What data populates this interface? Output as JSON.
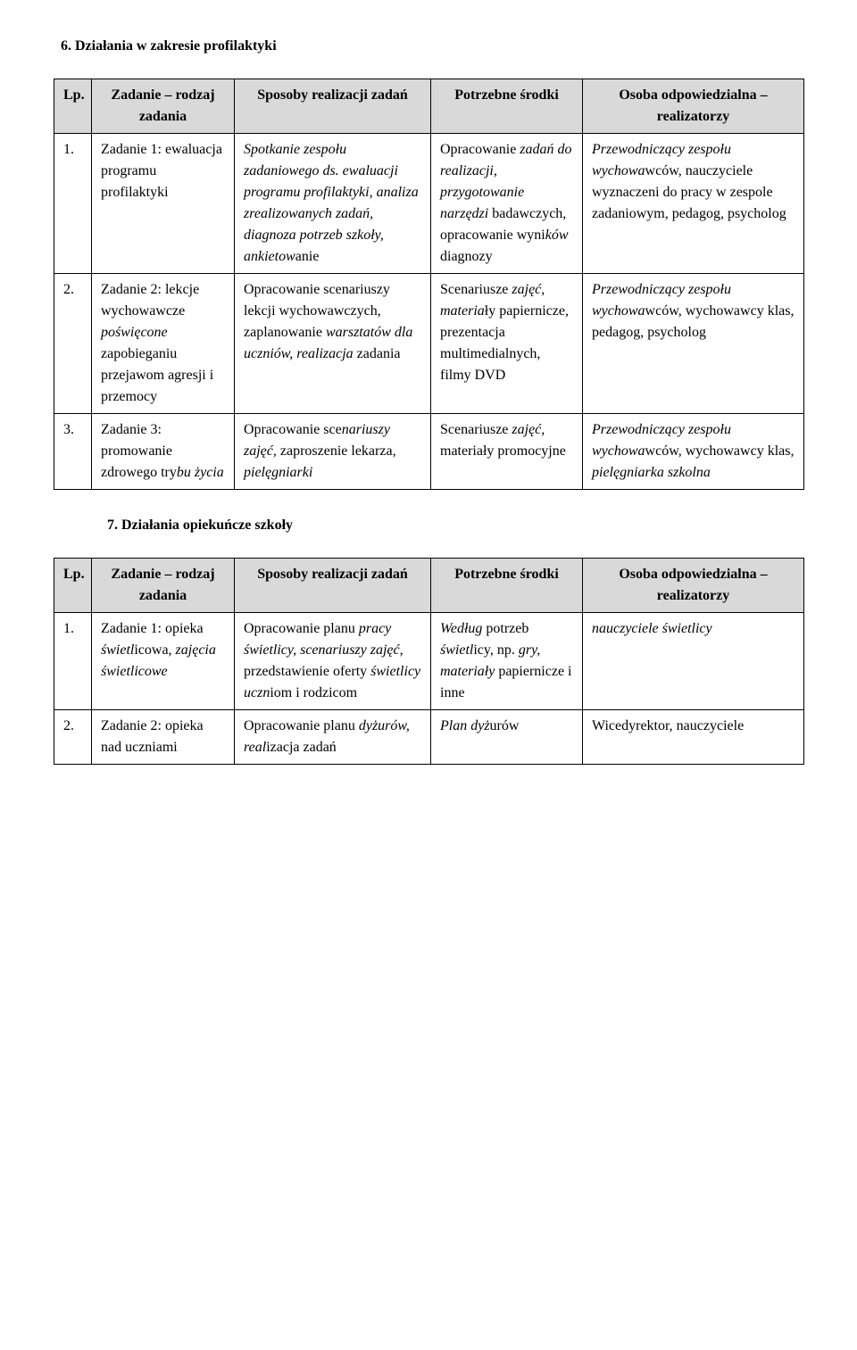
{
  "section6": {
    "heading": "6.  Działania w zakresie profilaktyki",
    "columns": [
      "Lp.",
      "Zadanie – rodzaj zadania",
      "Sposoby realizacji zadań",
      "Potrzebne środki",
      "Osoba odpowiedzialna – realizatorzy"
    ],
    "rows": [
      {
        "lp": "1.",
        "rodzaj": "Zadanie 1: ewaluacja programu profilaktyki",
        "sposoby_pre": "Spotkanie zespołu zadaniowego ds. ewaluacji programu profilaktyki, analiza zrealizowanych zadań, diagnoza potrzeb szkoły, ankietow",
        "sposoby_post": "anie",
        "srodki_pre": "Opracowanie ",
        "srodki_italic1": "zadań do realizacji, przygotowanie narzędzi",
        "srodki_mid": " badawczych, opracowanie wyni",
        "srodki_italic2": "ków",
        "srodki_post": " diagnozy",
        "osoba_italic": "Przewodniczący zespołu wychowa",
        "osoba_rest": "wców, nauczyciele wyznaczeni do pracy w zespole zadaniowym, pedagog, psycholog"
      },
      {
        "lp": "2.",
        "rodzaj_pre": "Zadanie 2: lekcje wychowawcze ",
        "rodzaj_italic": "poświęcone",
        "rodzaj_post": " zapobieganiu przejawom agresji i przemocy",
        "sposoby_pre": "Opracowanie scenariuszy lekcji wychowawczych, zaplanowanie ",
        "sposoby_italic": "warsztatów dla uczniów, realizacja",
        "sposoby_post": " zadania",
        "srodki_pre": "Scenariusze ",
        "srodki_italic": "zajęć, materia",
        "srodki_post": "ły papiernicze, prezentacja multimedialnych, filmy DVD",
        "osoba_italic": "Przewodniczący zespołu wychowa",
        "osoba_rest": "wców, wychowawcy klas, pedagog, psycholog"
      },
      {
        "lp": "3.",
        "rodzaj_pre": "Zadanie 3: promowanie zdrowego try",
        "rodzaj_italic": "bu życia",
        "sposoby_pre": "Opracowanie sce",
        "sposoby_italic": "nariuszy zajęć,",
        "sposoby_mid": " zaproszenie lekarza, ",
        "sposoby_italic2": "pielęgniarki",
        "srodki_pre": "Scenariusze ",
        "srodki_italic": "zajęć,",
        "srodki_post": " materiały promocyjne",
        "osoba_italic": "Przewodniczący zespołu wychowa",
        "osoba_mid": "wców, wychowawcy klas, ",
        "osoba_italic2": "pielęgniarka szkolna"
      }
    ]
  },
  "section7": {
    "heading": "7.  Działania opiekuńcze szkoły",
    "columns": [
      "Lp.",
      "Zadanie – rodzaj zadania",
      "Sposoby realizacji zadań",
      "Potrzebne środki",
      "Osoba odpowiedzialna – realizatorzy"
    ],
    "rows": [
      {
        "lp": "1.",
        "rodzaj_pre": "Zadanie 1: opieka ",
        "rodzaj_italic": "świetl",
        "rodzaj_mid": "icowa, ",
        "rodzaj_italic2": "zajęcia świetlicowe",
        "sposoby_pre": "Opracowanie planu ",
        "sposoby_italic": "pracy świetlicy, scenariuszy zajęć,",
        "sposoby_mid": " przedstawienie oferty ",
        "sposoby_italic2": "świetlicy uczn",
        "sposoby_post": "iom i rodzicom",
        "srodki_italic": "Według",
        "srodki_mid": " potrzeb ",
        "srodki_italic2": "świetl",
        "srodki_mid2": "icy, np. ",
        "srodki_italic3": "gry, materiały",
        "srodki_post": " papiernicze i inne",
        "osoba_italic": "nauczyciele świetlicy"
      },
      {
        "lp": "2.",
        "rodzaj": "Zadanie 2: opieka nad uczniami",
        "sposoby_pre": "Opracowanie planu ",
        "sposoby_italic": "dyżurów, real",
        "sposoby_post": "izacja zadań",
        "srodki_italic": "Plan dyż",
        "srodki_post": "urów",
        "osoba": "Wicedyrektor, nauczyciele"
      }
    ]
  },
  "style": {
    "header_bg": "#d9d9d9",
    "border_color": "#000000",
    "text_color": "#000000",
    "background": "#ffffff",
    "font_family": "Times New Roman",
    "base_fontsize": 16
  }
}
